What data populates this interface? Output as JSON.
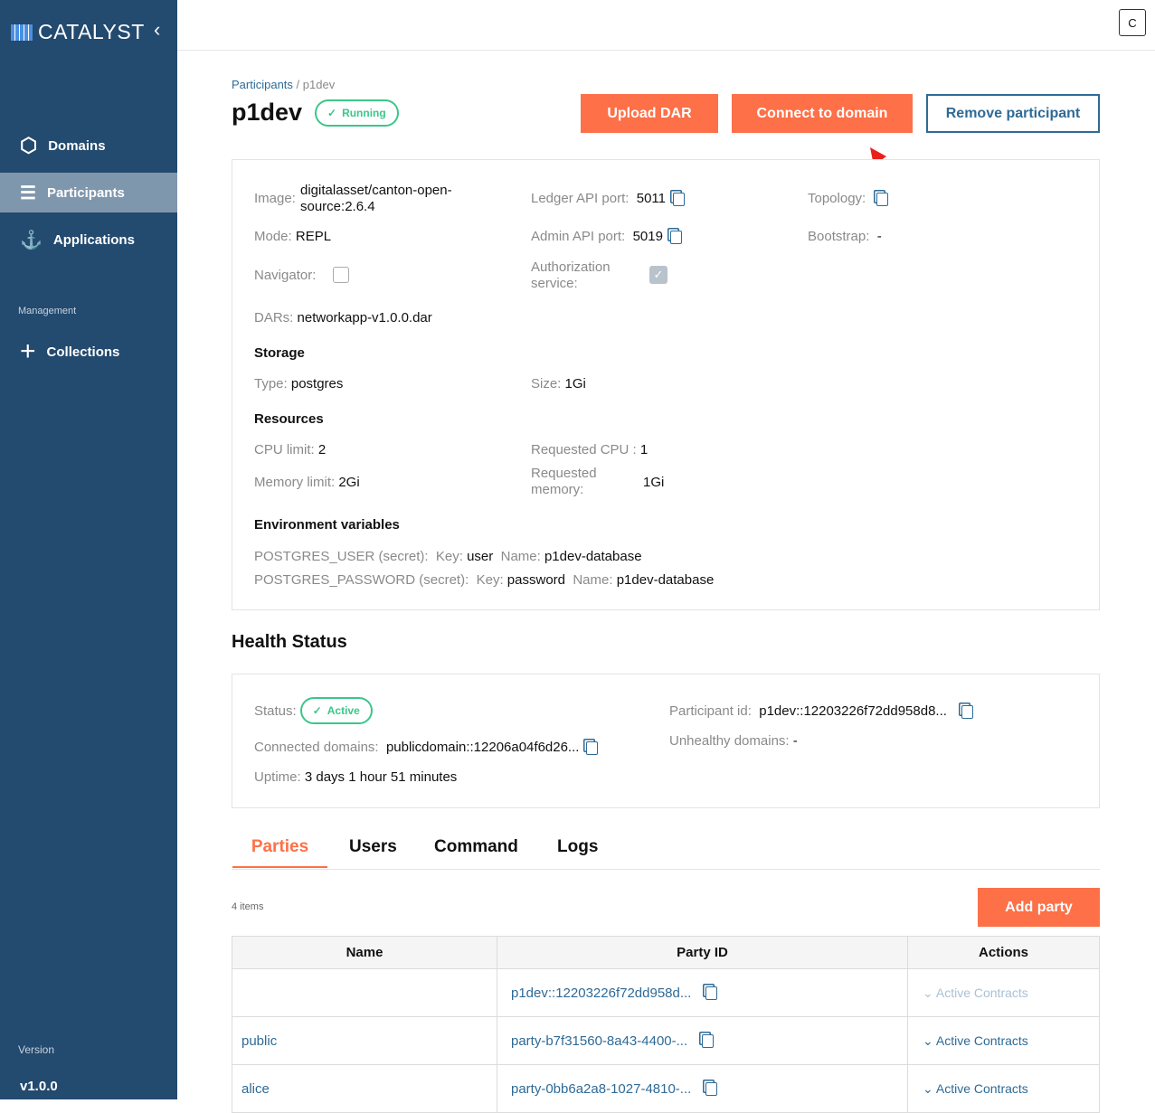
{
  "sidebar": {
    "brand": "CATALYST",
    "items": [
      {
        "label": "Domains"
      },
      {
        "label": "Participants"
      },
      {
        "label": "Applications"
      }
    ],
    "section": "Management",
    "collections": "Collections",
    "version_label": "Version",
    "version": "v1.0.0"
  },
  "topbar": {
    "user_initial": "C"
  },
  "breadcrumb": {
    "parent": "Participants",
    "sep": "/",
    "current": "p1dev"
  },
  "title": "p1dev",
  "status": "Running",
  "actions": {
    "upload": "Upload DAR",
    "connect": "Connect to domain",
    "remove": "Remove participant"
  },
  "details": {
    "image_label": "Image:",
    "image": "digitalasset/canton-open-source:2.6.4",
    "mode_label": "Mode:",
    "mode": "REPL",
    "navigator_label": "Navigator:",
    "navigator": false,
    "dars_label": "DARs:",
    "dars": "networkapp-v1.0.0.dar",
    "ledger_label": "Ledger API port:",
    "ledger": "5011",
    "admin_label": "Admin API port:",
    "admin": "5019",
    "auth_label": "Authorization service:",
    "auth": true,
    "topology_label": "Topology:",
    "bootstrap_label": "Bootstrap:",
    "bootstrap": "-",
    "storage_h": "Storage",
    "type_label": "Type:",
    "type": "postgres",
    "size_label": "Size:",
    "size": "1Gi",
    "resources_h": "Resources",
    "cpu_label": "CPU limit:",
    "cpu": "2",
    "mem_label": "Memory limit:",
    "mem": "2Gi",
    "rcpu_label": "Requested CPU :",
    "rcpu": "1",
    "rmem_label": "Requested memory:",
    "rmem": "1Gi",
    "env_h": "Environment variables",
    "env": [
      {
        "name": "POSTGRES_USER (secret):",
        "key_label": "Key:",
        "key": "user",
        "n_label": "Name:",
        "n": "p1dev-database"
      },
      {
        "name": "POSTGRES_PASSWORD (secret):",
        "key_label": "Key:",
        "key": "password",
        "n_label": "Name:",
        "n": "p1dev-database"
      }
    ]
  },
  "health": {
    "title": "Health Status",
    "status_label": "Status:",
    "status": "Active",
    "domains_label": "Connected domains:",
    "domains": "publicdomain::12206a04f6d26...",
    "uptime_label": "Uptime:",
    "uptime": "3 days 1 hour 51 minutes",
    "pid_label": "Participant id:",
    "pid": "p1dev::12203226f72dd958d8...",
    "unhealthy_label": "Unhealthy domains:",
    "unhealthy": "-"
  },
  "tabs": [
    "Parties",
    "Users",
    "Command",
    "Logs"
  ],
  "parties": {
    "count": "4 items",
    "add": "Add party",
    "columns": [
      "Name",
      "Party ID",
      "Actions"
    ],
    "rows": [
      {
        "name": "",
        "id": "p1dev::12203226f72dd958d...",
        "action": "Active Contracts",
        "disabled": true
      },
      {
        "name": "public",
        "id": "party-b7f31560-8a43-4400-...",
        "action": "Active Contracts"
      },
      {
        "name": "alice",
        "id": "party-0bb6a2a8-1027-4810-...",
        "action": "Active Contracts"
      }
    ]
  },
  "colors": {
    "sidebar": "#234a6f",
    "accent": "#fd7048",
    "link": "#2e6a96",
    "success": "#3cc68a",
    "annotation_arrow": "#e8201c"
  }
}
